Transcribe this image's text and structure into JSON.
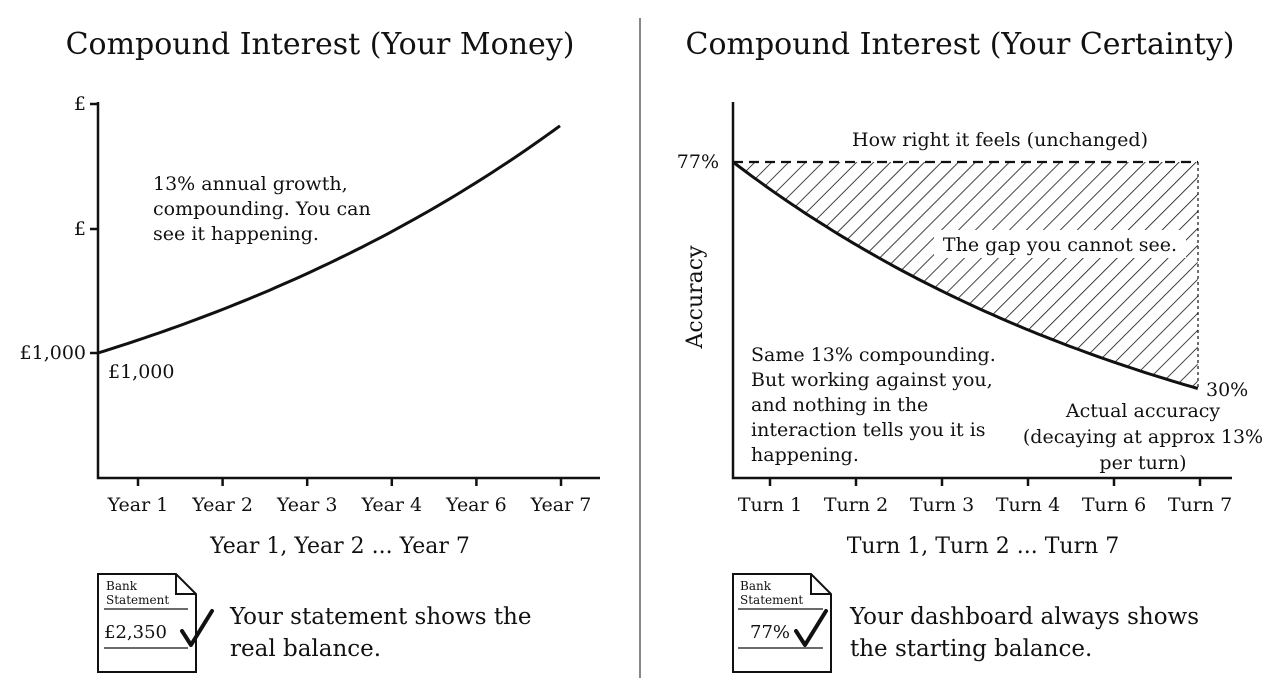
{
  "chart_data": [
    {
      "type": "line",
      "title": "Compound Interest (Your Money)",
      "xlabel": "Year 1, Year 2 ... Year 7",
      "ylabel": "",
      "x_tick_labels": [
        "Year 1",
        "Year 2",
        "Year 3",
        "Year 4",
        "Year 6",
        "Year 7"
      ],
      "y_tick_labels": [
        "£",
        "£",
        "£1,000"
      ],
      "series": [
        {
          "x": [
            0,
            1,
            2,
            3,
            4,
            5,
            6,
            7
          ],
          "values": [
            1000,
            1130,
            1277,
            1443,
            1630,
            1842,
            2082,
            2352
          ]
        }
      ],
      "annotations": {
        "start_label": "£1,000",
        "note": [
          "13% annual growth,",
          "compounding. You can",
          "see it happening."
        ]
      },
      "footer": {
        "doc_title": [
          "Bank",
          "Statement"
        ],
        "doc_value": "£2,350",
        "text": [
          "Your statement shows the",
          "real balance."
        ]
      },
      "grid": false
    },
    {
      "type": "line",
      "title": "Compound Interest (Your Certainty)",
      "xlabel": "Turn 1, Turn 2 ... Turn 7",
      "ylabel": "Accuracy",
      "x_tick_labels": [
        "Turn 1",
        "Turn 2",
        "Turn 3",
        "Turn 4",
        "Turn 6",
        "Turn 7"
      ],
      "y_tick_labels": [
        "77%"
      ],
      "series": [
        {
          "x": [
            0,
            1,
            2,
            3,
            4,
            5,
            6,
            7
          ],
          "values": [
            77,
            67,
            58.3,
            50.7,
            44.1,
            38.4,
            33.4,
            30
          ]
        },
        {
          "x": [
            0,
            7
          ],
          "values": [
            77,
            77
          ]
        }
      ],
      "annotations": {
        "feels_label": "How right it feels (unchanged)",
        "gap_label": "The gap you cannot see.",
        "end_label": "30%",
        "actual_label": [
          "Actual accuracy",
          "(decaying at approx 13%",
          "per turn)"
        ],
        "note": [
          "Same 13% compounding.",
          "But working against you,",
          "and nothing in the",
          "interaction tells you it is",
          "happening."
        ]
      },
      "footer": {
        "doc_title": [
          "Bank",
          "Statement"
        ],
        "doc_value": "77%",
        "text": [
          "Your dashboard always shows",
          "the starting balance."
        ]
      },
      "grid": false
    }
  ]
}
